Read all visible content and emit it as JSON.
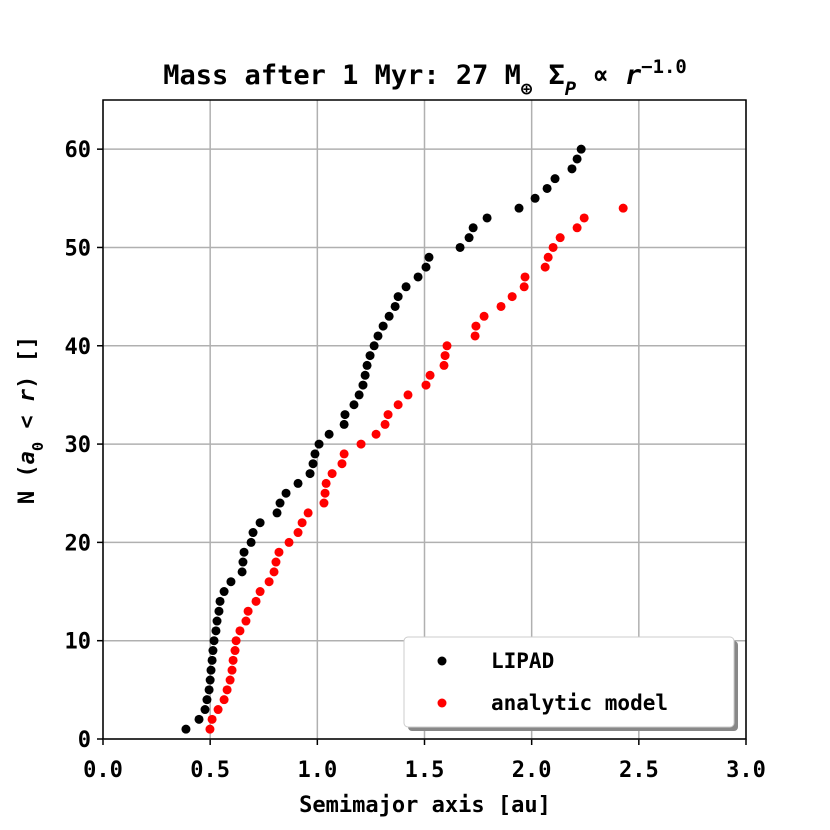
{
  "chart_data": {
    "type": "scatter",
    "title": [
      {
        "text": "Mass after 1 Myr: 27 M"
      },
      {
        "text": "⊕",
        "format": "sub"
      },
      {
        "text": " Σ"
      },
      {
        "text": "P",
        "format": "sub-italic"
      },
      {
        "text": " ∝ "
      },
      {
        "text": "r",
        "format": "italic"
      },
      {
        "text": "−1.0",
        "format": "sup"
      }
    ],
    "xlabel": "Semimajor axis [au]",
    "ylabel": [
      {
        "text": "N ("
      },
      {
        "text": "a",
        "format": "italic"
      },
      {
        "text": "0",
        "format": "sub"
      },
      {
        "text": " < "
      },
      {
        "text": "r",
        "format": "italic"
      },
      {
        "text": ") []"
      }
    ],
    "xlim": [
      0,
      3
    ],
    "ylim": [
      0,
      65
    ],
    "xticks": [
      {
        "value": 0,
        "label": "0.0"
      },
      {
        "value": 0.5,
        "label": "0.5"
      },
      {
        "value": 1,
        "label": "1.0"
      },
      {
        "value": 1.5,
        "label": "1.5"
      },
      {
        "value": 2,
        "label": "2.0"
      },
      {
        "value": 2.5,
        "label": "2.5"
      },
      {
        "value": 3,
        "label": "3.0"
      }
    ],
    "yticks": [
      0,
      10,
      20,
      30,
      40,
      50,
      60
    ],
    "grid": true,
    "legend": "lower right",
    "series": [
      {
        "name": "LIPAD",
        "color": "#000000",
        "x": [
          0.387,
          0.448,
          0.476,
          0.485,
          0.495,
          0.5,
          0.504,
          0.509,
          0.513,
          0.518,
          0.527,
          0.532,
          0.541,
          0.546,
          0.565,
          0.597,
          0.649,
          0.653,
          0.658,
          0.691,
          0.7,
          0.733,
          0.812,
          0.826,
          0.854,
          0.91,
          0.966,
          0.98,
          0.989,
          1.008,
          1.055,
          1.125,
          1.129,
          1.171,
          1.195,
          1.213,
          1.223,
          1.232,
          1.246,
          1.265,
          1.283,
          1.307,
          1.335,
          1.363,
          1.377,
          1.414,
          1.47,
          1.507,
          1.521,
          1.666,
          1.708,
          1.727,
          1.792,
          1.941,
          2.016,
          2.072,
          2.109,
          2.188,
          2.212,
          2.231
        ],
        "values": [
          1,
          2,
          3,
          4,
          5,
          6,
          7,
          8,
          9,
          10,
          11,
          12,
          13,
          14,
          15,
          16,
          17,
          18,
          19,
          20,
          21,
          22,
          23,
          24,
          25,
          26,
          27,
          28,
          29,
          30,
          31,
          32,
          33,
          34,
          35,
          36,
          37,
          38,
          39,
          40,
          41,
          42,
          43,
          44,
          45,
          46,
          47,
          48,
          49,
          50,
          51,
          52,
          53,
          54,
          55,
          56,
          57,
          58,
          59,
          60
        ]
      },
      {
        "name": "analytic model",
        "color": "#ff0000",
        "x": [
          0.499,
          0.509,
          0.537,
          0.565,
          0.579,
          0.593,
          0.602,
          0.607,
          0.616,
          0.621,
          0.639,
          0.667,
          0.677,
          0.714,
          0.733,
          0.775,
          0.798,
          0.807,
          0.821,
          0.868,
          0.91,
          0.929,
          0.957,
          1.031,
          1.036,
          1.041,
          1.069,
          1.115,
          1.125,
          1.204,
          1.274,
          1.316,
          1.33,
          1.377,
          1.423,
          1.507,
          1.526,
          1.591,
          1.596,
          1.605,
          1.736,
          1.74,
          1.778,
          1.857,
          1.909,
          1.965,
          1.969,
          2.063,
          2.077,
          2.1,
          2.133,
          2.212,
          2.245,
          2.427
        ],
        "values": [
          1,
          2,
          3,
          4,
          5,
          6,
          7,
          8,
          9,
          10,
          11,
          12,
          13,
          14,
          15,
          16,
          17,
          18,
          19,
          20,
          21,
          22,
          23,
          24,
          25,
          26,
          27,
          28,
          29,
          30,
          31,
          32,
          33,
          34,
          35,
          36,
          37,
          38,
          39,
          40,
          41,
          42,
          43,
          44,
          45,
          46,
          47,
          48,
          49,
          50,
          51,
          52,
          53,
          54
        ]
      }
    ]
  }
}
